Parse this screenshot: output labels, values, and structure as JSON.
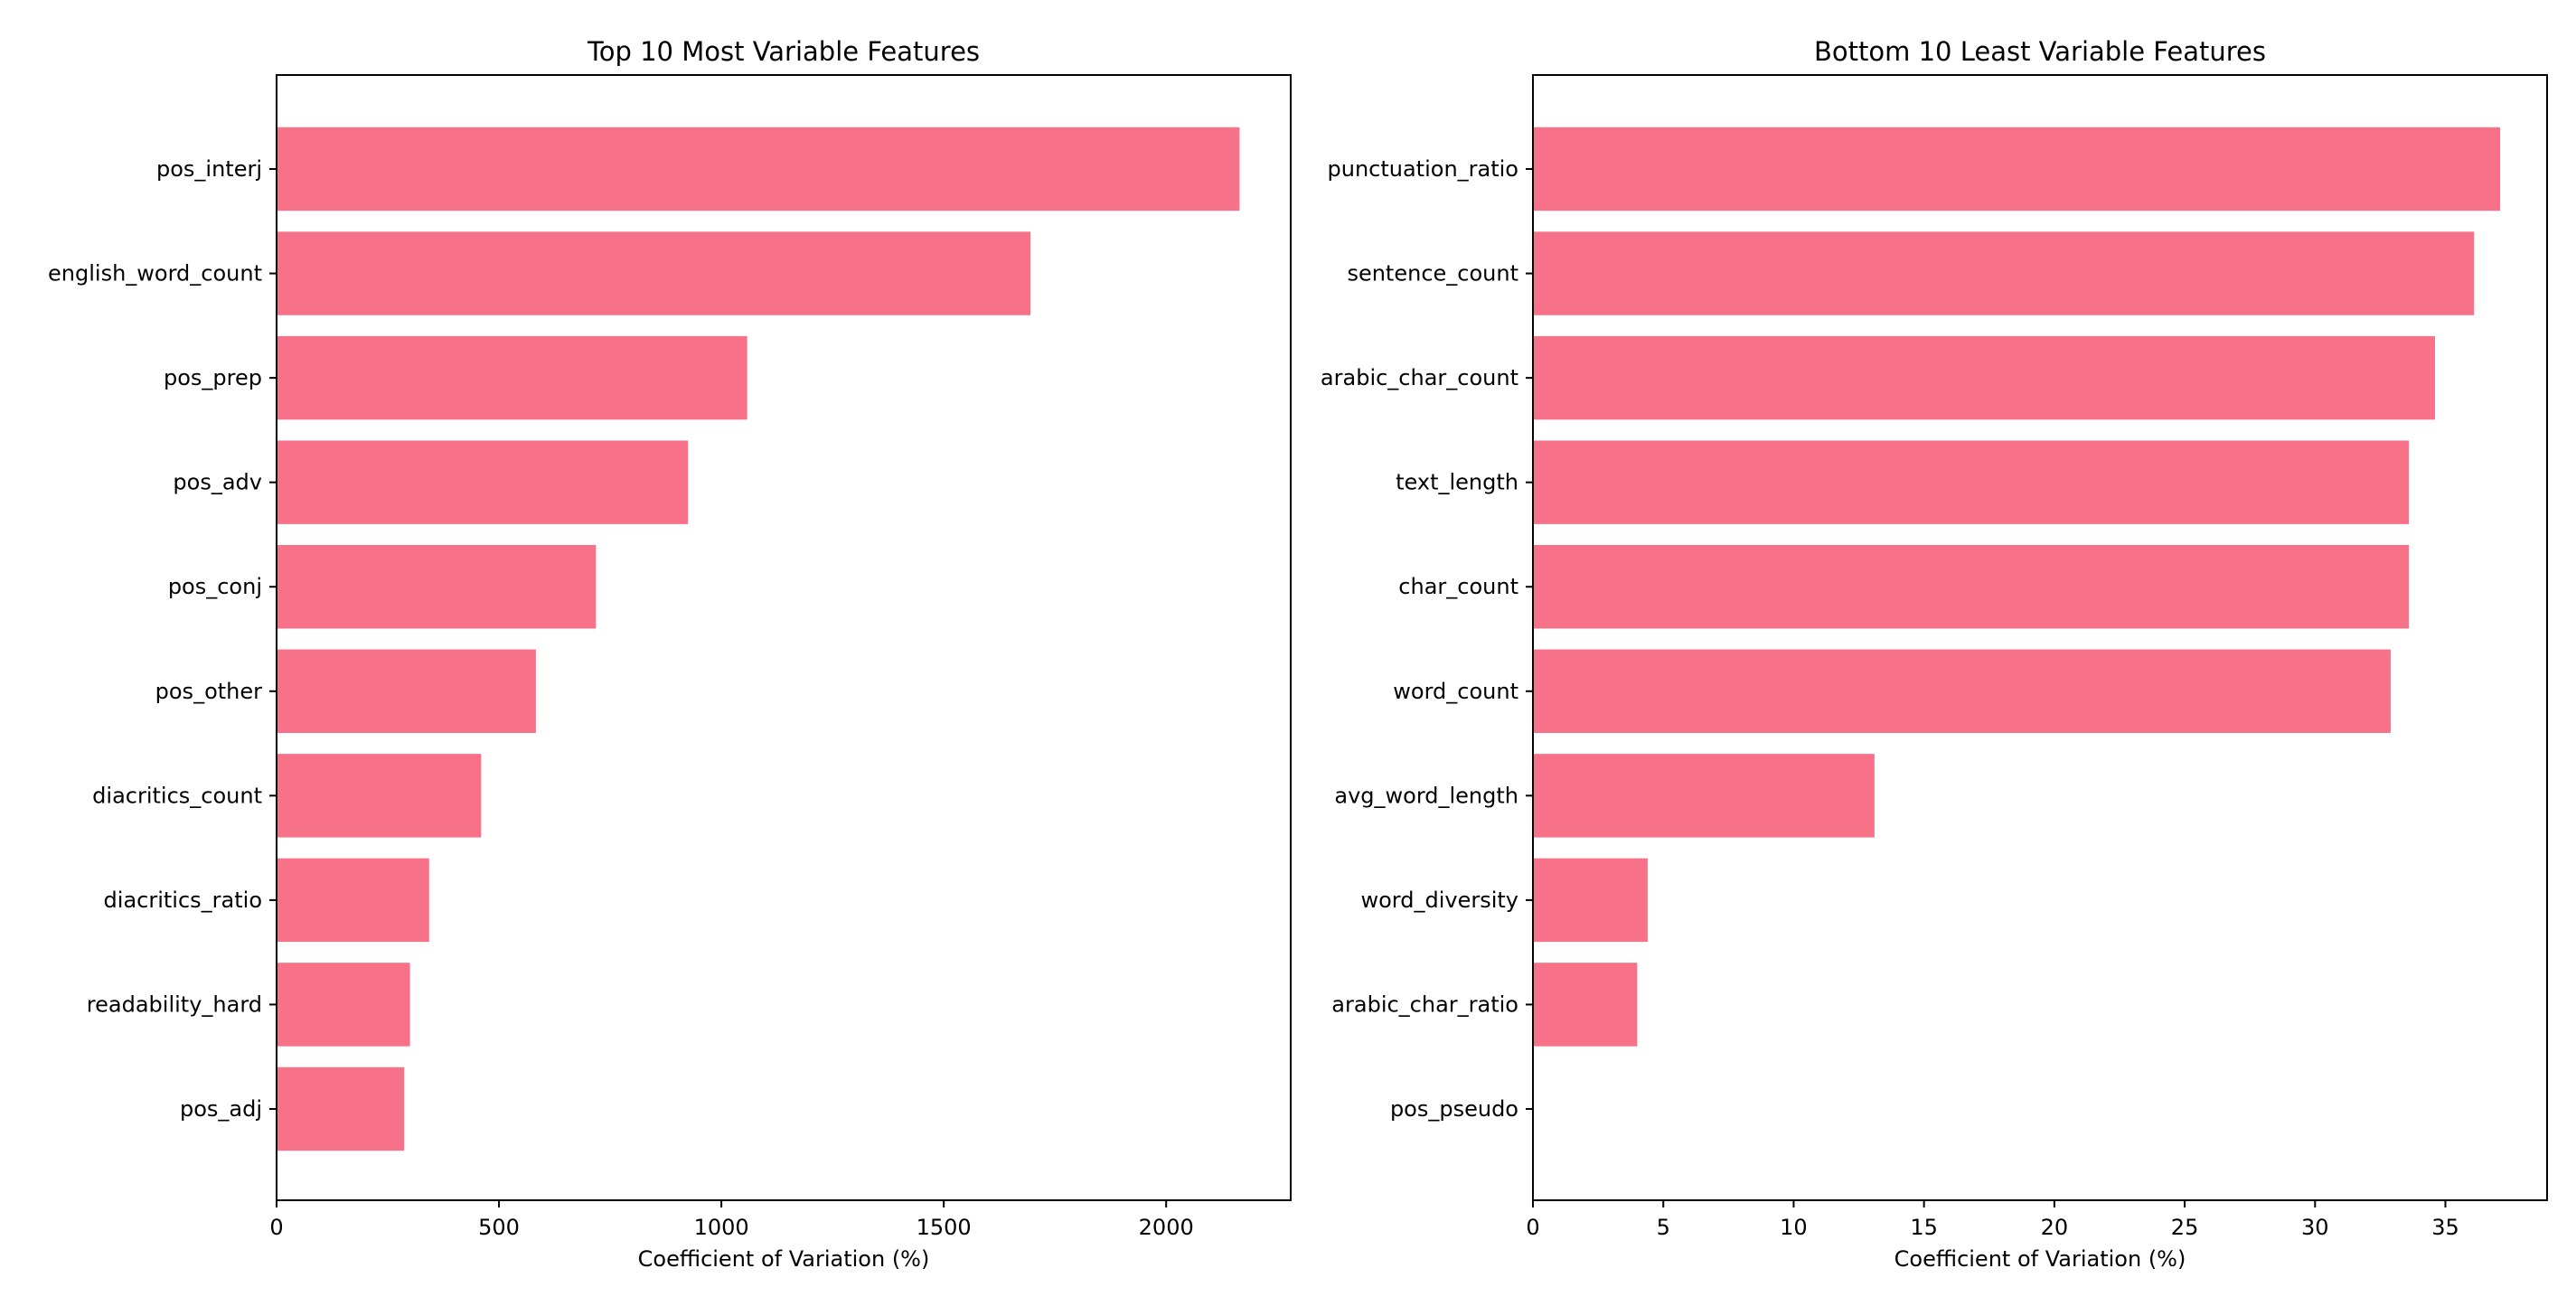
{
  "chart_data": [
    {
      "type": "bar",
      "orientation": "horizontal",
      "title": "Top 10 Most Variable Features",
      "xlabel": "Coefficient of Variation (%)",
      "ylabel": "",
      "xlim": [
        0,
        2280
      ],
      "xticks": [
        0,
        500,
        1000,
        1500,
        2000
      ],
      "color": "#f77189",
      "categories": [
        "pos_interj",
        "english_word_count",
        "pos_prep",
        "pos_adv",
        "pos_conj",
        "pos_other",
        "diacritics_count",
        "diacritics_ratio",
        "readability_hard",
        "pos_adj"
      ],
      "values": [
        2165,
        1695,
        1058,
        925,
        718,
        583,
        460,
        343,
        300,
        287
      ]
    },
    {
      "type": "bar",
      "orientation": "horizontal",
      "title": "Bottom 10 Least Variable Features",
      "xlabel": "Coefficient of Variation (%)",
      "ylabel": "",
      "xlim": [
        0,
        38.9
      ],
      "xticks": [
        0,
        5,
        10,
        15,
        20,
        25,
        30,
        35
      ],
      "color": "#f77189",
      "categories": [
        "punctuation_ratio",
        "sentence_count",
        "arabic_char_count",
        "text_length",
        "char_count",
        "word_count",
        "avg_word_length",
        "word_diversity",
        "arabic_char_ratio",
        "pos_pseudo"
      ],
      "values": [
        37.1,
        36.1,
        34.6,
        33.6,
        33.6,
        32.9,
        13.1,
        4.4,
        4.0,
        0.0
      ]
    }
  ]
}
